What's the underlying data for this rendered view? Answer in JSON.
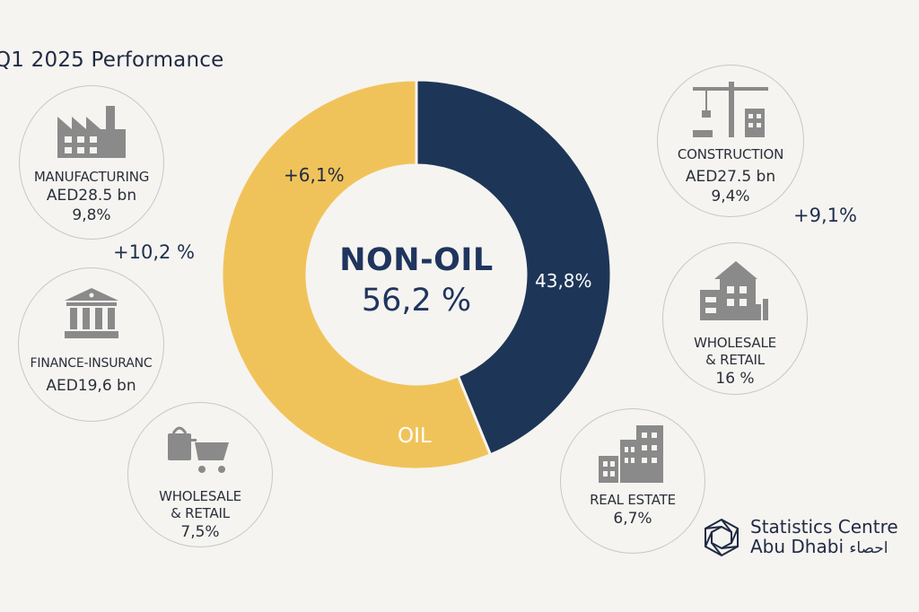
{
  "header": {
    "title": "Q1 2025 Performance"
  },
  "chart_data": {
    "type": "pie",
    "donut": true,
    "center_label": "NON-OIL",
    "center_value": "56,2 %",
    "slices": [
      {
        "name": "NON-OIL",
        "value": 56.2,
        "color": "#f0c35a"
      },
      {
        "name": "OIL",
        "value": 43.8,
        "color": "#1d3557"
      }
    ],
    "slice_labels": {
      "non_oil": "+6,1%",
      "oil_pct": "43,8%",
      "oil_name": "OIL"
    }
  },
  "sectors": [
    {
      "id": "manufacturing",
      "icon": "factory-icon",
      "label": "MANUFACTURING",
      "value": "AED28.5 bn",
      "share": "9,8%",
      "growth": "+10,2 %"
    },
    {
      "id": "finance",
      "icon": "bank-icon",
      "label": "FINANCE-INSURANC",
      "value": "AED19,6 bn"
    },
    {
      "id": "wholesale-left",
      "icon": "shopping-cart-icon",
      "label_line1": "WHOLESALE",
      "label_line2": "& RETAIL",
      "share": "7,5%"
    },
    {
      "id": "construction",
      "icon": "crane-icon",
      "label": "CONSTRUCTION",
      "value": "AED27.5 bn",
      "share": "9,4%",
      "growth": "+9,1%"
    },
    {
      "id": "wholesale-right",
      "icon": "building-icon",
      "label_line1": "WHOLESALE",
      "label_line2": "& RETAIL",
      "share": "16 %"
    },
    {
      "id": "real-estate",
      "icon": "tower-icon",
      "label": "REAL ESTATE",
      "share": "6,7%"
    }
  ],
  "logo": {
    "line1": "Statistics Centre",
    "line2": "Abu Dhabi",
    "arabic": "احصاء"
  }
}
